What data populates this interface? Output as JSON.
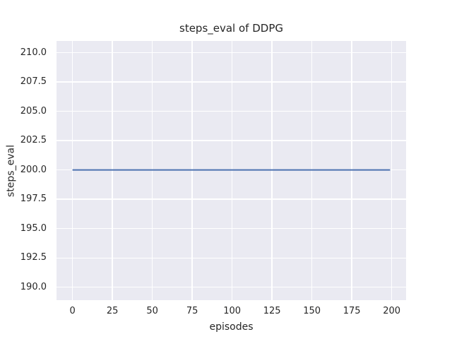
{
  "figure": {
    "background": "#ffffff",
    "plot_background": "#eaeaf2",
    "grid_color": "#ffffff",
    "text_color": "#262626"
  },
  "chart_data": {
    "type": "line",
    "title": "steps_eval of DDPG",
    "xlabel": "episodes",
    "ylabel": "steps_eval",
    "xlim": [
      -10,
      209
    ],
    "ylim": [
      188.9,
      211.0
    ],
    "x_ticks": [
      0,
      25,
      50,
      75,
      100,
      125,
      150,
      175,
      200
    ],
    "x_tick_labels": [
      "0",
      "25",
      "50",
      "75",
      "100",
      "125",
      "150",
      "175",
      "200"
    ],
    "y_ticks": [
      190.0,
      192.5,
      195.0,
      197.5,
      200.0,
      202.5,
      205.0,
      207.5,
      210.0
    ],
    "y_tick_labels": [
      "190.0",
      "192.5",
      "195.0",
      "197.5",
      "200.0",
      "202.5",
      "205.0",
      "207.5",
      "210.0"
    ],
    "grid": true,
    "legend_position": "none",
    "series": [
      {
        "name": "DDPG",
        "color": "#4c72b0",
        "line_width": 2,
        "x": [
          0,
          199
        ],
        "y": [
          200,
          200
        ]
      }
    ]
  }
}
